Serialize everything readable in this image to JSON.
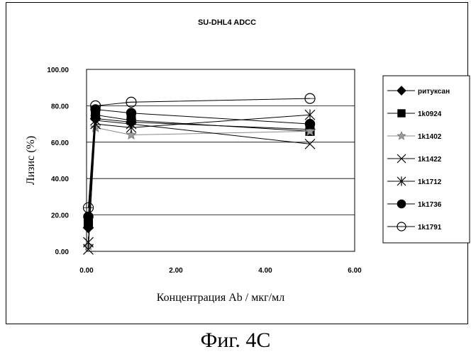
{
  "caption": "Фиг. 4C",
  "chart_data": {
    "type": "line",
    "title": "SU-DHL4 ADCC",
    "xlabel": "Концентрация Ab / мкг/мл",
    "ylabel": "Лизис (%)",
    "xlim": [
      0,
      6
    ],
    "ylim": [
      0,
      100
    ],
    "xticks": [
      "0.00",
      "2.00",
      "4.00",
      "6.00"
    ],
    "yticks": [
      "0.00",
      "20.00",
      "40.00",
      "60.00",
      "80.00",
      "100.00"
    ],
    "grid": "horizontal",
    "legend_position": "right",
    "series": [
      {
        "name": "ритуксан",
        "marker": "diamond",
        "x": [
          0.04,
          0.2,
          1.0,
          5.0
        ],
        "y": [
          13,
          73,
          71,
          67
        ]
      },
      {
        "name": "1k0924",
        "marker": "square",
        "x": [
          0.04,
          0.2,
          1.0,
          5.0
        ],
        "y": [
          15,
          75,
          72,
          66
        ]
      },
      {
        "name": "1k1402",
        "marker": "star",
        "x": [
          0.04,
          0.2,
          1.0,
          5.0
        ],
        "y": [
          3,
          68,
          64,
          66
        ]
      },
      {
        "name": "1k1422",
        "marker": "x",
        "x": [
          0.04,
          0.2,
          1.0,
          5.0
        ],
        "y": [
          1,
          72,
          70,
          59
        ]
      },
      {
        "name": "1k1712",
        "marker": "asterisk",
        "x": [
          0.04,
          0.2,
          1.0,
          5.0
        ],
        "y": [
          5,
          70,
          68,
          75
        ]
      },
      {
        "name": "1k1736",
        "marker": "filled-circle",
        "x": [
          0.04,
          0.2,
          1.0,
          5.0
        ],
        "y": [
          19,
          78,
          76,
          70
        ]
      },
      {
        "name": "1k1791",
        "marker": "open-circle",
        "x": [
          0.04,
          0.2,
          1.0,
          5.0
        ],
        "y": [
          24,
          80,
          82,
          84
        ]
      }
    ]
  }
}
